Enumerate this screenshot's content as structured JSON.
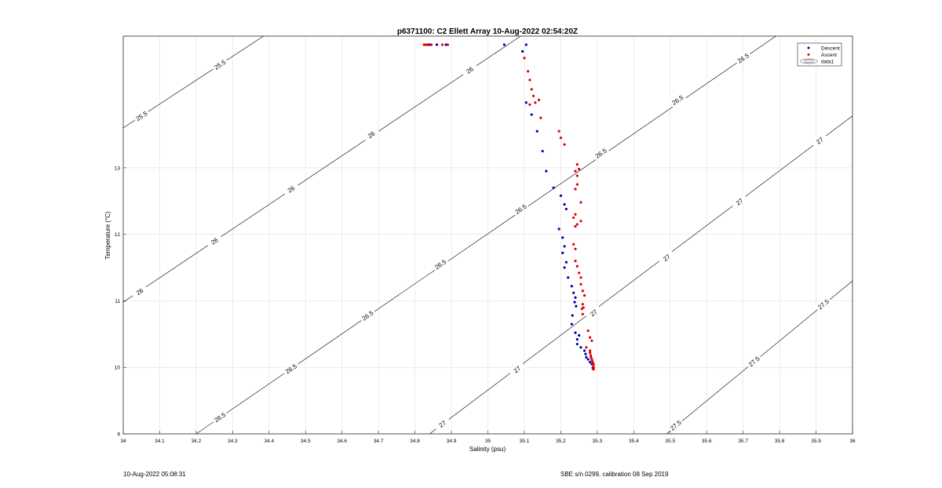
{
  "figure": {
    "timestamp": "10-Aug-2022 05:08:31",
    "calibration": "SBE s/n 0299, calibration 08 Sep 2019"
  },
  "chart_data": {
    "type": "scatter",
    "title": "p6371100: C2 Ellett Array 10-Aug-2022 02:54:20Z",
    "xlabel": "Salinity (psu)",
    "ylabel": "Temperature (°C)",
    "xlim": [
      34,
      36
    ],
    "ylim": [
      9,
      14.98
    ],
    "xticks": [
      34,
      34.1,
      34.2,
      34.3,
      34.4,
      34.5,
      34.6,
      34.7,
      34.8,
      34.9,
      35,
      35.1,
      35.2,
      35.3,
      35.4,
      35.5,
      35.6,
      35.7,
      35.8,
      35.9,
      36
    ],
    "xtick_labels": [
      "34",
      "34.1",
      "34.2",
      "34.3",
      "34.4",
      "34.5",
      "34.6",
      "34.7",
      "34.8",
      "34.9",
      "35",
      "35.1",
      "35.2",
      "35.3",
      "35.4",
      "35.5",
      "35.6",
      "35.7",
      "35.8",
      "35.9",
      "36"
    ],
    "yticks": [
      9,
      10,
      11,
      12,
      13
    ],
    "ytick_labels": [
      "9",
      "10",
      "11",
      "12",
      "13"
    ],
    "grid": true,
    "legend": {
      "position": "top-right",
      "entries": [
        "Descent",
        "Ascent",
        "data1"
      ]
    },
    "colors": {
      "descent": "#0000b4",
      "ascent": "#e00000",
      "contour": "#000000",
      "grid": "#e4e4e4"
    },
    "series": [
      {
        "name": "Descent",
        "marker": "dot",
        "points": [
          [
            34.84,
            14.85
          ],
          [
            34.86,
            14.85
          ],
          [
            34.885,
            14.85
          ],
          [
            35.045,
            14.85
          ],
          [
            35.105,
            14.85
          ],
          [
            35.095,
            14.75
          ],
          [
            35.105,
            13.98
          ],
          [
            35.12,
            13.8
          ],
          [
            35.135,
            13.55
          ],
          [
            35.15,
            13.25
          ],
          [
            35.16,
            12.95
          ],
          [
            35.18,
            12.7
          ],
          [
            35.2,
            12.58
          ],
          [
            35.21,
            12.45
          ],
          [
            35.215,
            12.38
          ],
          [
            35.195,
            12.08
          ],
          [
            35.205,
            11.95
          ],
          [
            35.21,
            11.82
          ],
          [
            35.205,
            11.72
          ],
          [
            35.215,
            11.58
          ],
          [
            35.21,
            11.5
          ],
          [
            35.22,
            11.35
          ],
          [
            35.23,
            11.22
          ],
          [
            35.235,
            11.12
          ],
          [
            35.24,
            11.05
          ],
          [
            35.238,
            10.98
          ],
          [
            35.242,
            10.92
          ],
          [
            35.232,
            10.78
          ],
          [
            35.23,
            10.65
          ],
          [
            35.24,
            10.52
          ],
          [
            35.25,
            10.48
          ],
          [
            35.245,
            10.42
          ],
          [
            35.245,
            10.35
          ],
          [
            35.255,
            10.3
          ],
          [
            35.265,
            10.25
          ],
          [
            35.268,
            10.2
          ],
          [
            35.27,
            10.15
          ],
          [
            35.275,
            10.12
          ],
          [
            35.28,
            10.08
          ],
          [
            35.285,
            10.05
          ],
          [
            35.288,
            10.0
          ]
        ]
      },
      {
        "name": "Ascent",
        "marker": "dot",
        "points": [
          [
            34.825,
            14.85
          ],
          [
            34.83,
            14.85
          ],
          [
            34.835,
            14.85
          ],
          [
            34.845,
            14.85
          ],
          [
            34.875,
            14.85
          ],
          [
            34.89,
            14.85
          ],
          [
            35.1,
            14.65
          ],
          [
            35.11,
            14.45
          ],
          [
            35.115,
            14.32
          ],
          [
            35.12,
            14.18
          ],
          [
            35.125,
            14.08
          ],
          [
            35.115,
            13.95
          ],
          [
            35.13,
            13.98
          ],
          [
            35.14,
            14.02
          ],
          [
            35.145,
            13.75
          ],
          [
            35.195,
            13.55
          ],
          [
            35.2,
            13.45
          ],
          [
            35.21,
            13.35
          ],
          [
            35.245,
            13.05
          ],
          [
            35.25,
            12.98
          ],
          [
            35.24,
            12.95
          ],
          [
            35.245,
            12.88
          ],
          [
            35.24,
            12.68
          ],
          [
            35.245,
            12.75
          ],
          [
            35.255,
            12.48
          ],
          [
            35.24,
            12.3
          ],
          [
            35.235,
            12.25
          ],
          [
            35.245,
            12.15
          ],
          [
            35.255,
            12.2
          ],
          [
            35.24,
            12.12
          ],
          [
            35.235,
            11.85
          ],
          [
            35.24,
            11.78
          ],
          [
            35.24,
            11.6
          ],
          [
            35.245,
            11.52
          ],
          [
            35.25,
            11.42
          ],
          [
            35.255,
            11.35
          ],
          [
            35.255,
            11.25
          ],
          [
            35.26,
            11.15
          ],
          [
            35.265,
            11.08
          ],
          [
            35.26,
            10.95
          ],
          [
            35.262,
            10.9
          ],
          [
            35.258,
            10.88
          ],
          [
            35.26,
            10.8
          ],
          [
            35.275,
            10.55
          ],
          [
            35.28,
            10.45
          ],
          [
            35.285,
            10.4
          ],
          [
            35.27,
            10.3
          ],
          [
            35.28,
            10.25
          ],
          [
            35.28,
            10.22
          ],
          [
            35.282,
            10.18
          ],
          [
            35.283,
            10.15
          ],
          [
            35.285,
            10.12
          ],
          [
            35.286,
            10.1
          ],
          [
            35.288,
            10.07
          ],
          [
            35.29,
            10.04
          ],
          [
            35.29,
            10.0
          ],
          [
            35.29,
            9.97
          ],
          [
            35.288,
            9.98
          ]
        ]
      }
    ],
    "contours": [
      {
        "level": "25.5",
        "line": [
          [
            34,
            13.6
          ],
          [
            34.385,
            14.98
          ]
        ],
        "labels": [
          {
            "text": "25.5",
            "s": 34.05,
            "t": 13.78
          },
          {
            "text": "25.5",
            "s": 34.265,
            "t": 14.55
          }
        ]
      },
      {
        "level": "26",
        "line": [
          [
            34,
            10.98
          ],
          [
            35.09,
            14.98
          ]
        ],
        "labels": [
          {
            "text": "26",
            "s": 34.045,
            "t": 11.14
          },
          {
            "text": "26",
            "s": 34.25,
            "t": 11.9
          },
          {
            "text": "26",
            "s": 34.46,
            "t": 12.68
          },
          {
            "text": "26",
            "s": 34.68,
            "t": 13.5
          },
          {
            "text": "26",
            "s": 34.95,
            "t": 14.47
          }
        ]
      },
      {
        "level": "26.5",
        "line": [
          [
            34.2,
            9.0
          ],
          [
            35.79,
            14.98
          ]
        ],
        "labels": [
          {
            "text": "26.5",
            "s": 34.265,
            "t": 9.25
          },
          {
            "text": "26.5",
            "s": 34.46,
            "t": 9.98
          },
          {
            "text": "26.5",
            "s": 34.67,
            "t": 10.78
          },
          {
            "text": "26.5",
            "s": 34.87,
            "t": 11.55
          },
          {
            "text": "26.5",
            "s": 35.09,
            "t": 12.38
          },
          {
            "text": "26.5",
            "s": 35.31,
            "t": 13.22
          },
          {
            "text": "26.5",
            "s": 35.52,
            "t": 14.02
          },
          {
            "text": "26.5",
            "s": 35.7,
            "t": 14.65
          }
        ]
      },
      {
        "level": "27",
        "line": [
          [
            34.84,
            9.0
          ],
          [
            36.0,
            13.78
          ]
        ],
        "labels": [
          {
            "text": "27",
            "s": 34.875,
            "t": 9.15
          },
          {
            "text": "27",
            "s": 35.08,
            "t": 9.97
          },
          {
            "text": "27",
            "s": 35.29,
            "t": 10.82
          },
          {
            "text": "27",
            "s": 35.49,
            "t": 11.65
          },
          {
            "text": "27",
            "s": 35.69,
            "t": 12.49
          },
          {
            "text": "27",
            "s": 35.91,
            "t": 13.41
          }
        ]
      },
      {
        "level": "27.5",
        "line": [
          [
            35.49,
            9.0
          ],
          [
            36.0,
            11.3
          ]
        ],
        "labels": [
          {
            "text": "27.5",
            "s": 35.515,
            "t": 9.13
          },
          {
            "text": "27.5",
            "s": 35.73,
            "t": 10.09
          },
          {
            "text": "27.5",
            "s": 35.92,
            "t": 10.95
          }
        ]
      }
    ]
  }
}
